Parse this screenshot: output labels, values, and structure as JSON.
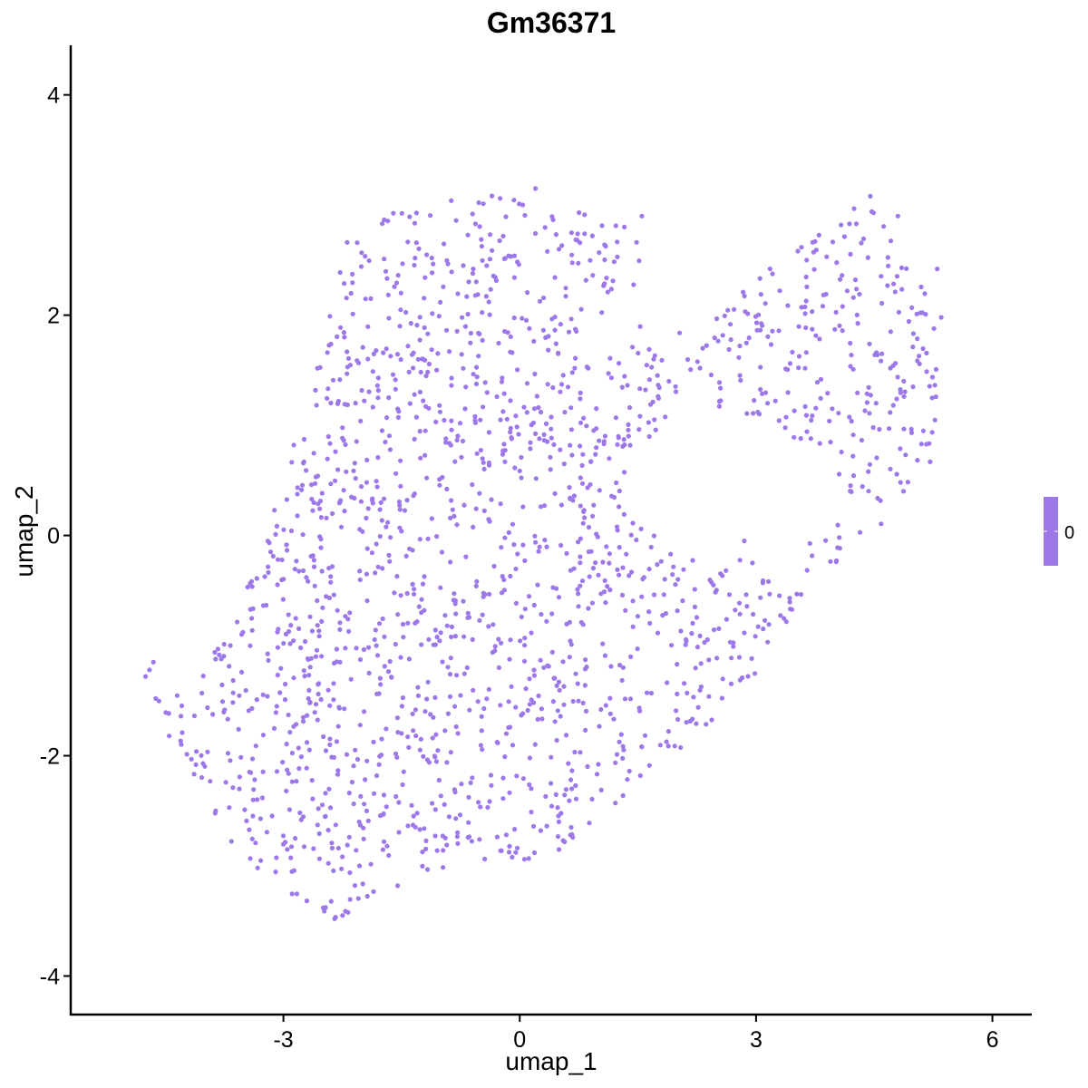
{
  "chart_data": {
    "type": "scatter",
    "title": "Gm36371",
    "xlabel": "umap_1",
    "ylabel": "umap_2",
    "xlim": [
      -5.7,
      6.5
    ],
    "ylim": [
      -4.35,
      4.45
    ],
    "xticks": [
      "-3",
      "0",
      "3",
      "6"
    ],
    "yticks": [
      "-4",
      "-2",
      "0",
      "2",
      "4"
    ],
    "grid": false,
    "point_color": "#9d78e8",
    "n_points": 1800,
    "legend": {
      "position": "right",
      "labels": [
        "0"
      ],
      "color": "#9d78e8"
    },
    "region_outline": [
      [
        -4.7,
        -1.3
      ],
      [
        -4.1,
        -1.4
      ],
      [
        -3.3,
        -0.2
      ],
      [
        -2.6,
        1.5
      ],
      [
        -2.2,
        2.7
      ],
      [
        -1.5,
        3.0
      ],
      [
        -0.5,
        3.1
      ],
      [
        0.5,
        3.0
      ],
      [
        1.5,
        2.85
      ],
      [
        1.6,
        1.8
      ],
      [
        2.3,
        1.95
      ],
      [
        3.3,
        2.5
      ],
      [
        4.4,
        3.05
      ],
      [
        5.35,
        2.0
      ],
      [
        5.25,
        0.6
      ],
      [
        4.5,
        0.0
      ],
      [
        3.6,
        -0.5
      ],
      [
        3.2,
        -1.1
      ],
      [
        2.3,
        -1.8
      ],
      [
        1.4,
        -2.3
      ],
      [
        0.9,
        -2.8
      ],
      [
        0.0,
        -3.0
      ],
      [
        -1.5,
        -3.1
      ],
      [
        -2.3,
        -3.5
      ],
      [
        -3.2,
        -3.2
      ],
      [
        -4.2,
        -2.3
      ]
    ],
    "region_hole": [
      [
        1.3,
        0.5
      ],
      [
        2.1,
        1.3
      ],
      [
        3.1,
        1.0
      ],
      [
        3.9,
        0.7
      ],
      [
        4.1,
        0.2
      ],
      [
        3.4,
        -0.25
      ],
      [
        2.6,
        -0.2
      ],
      [
        1.8,
        -0.1
      ]
    ],
    "outlier_points": [
      [
        -4.75,
        -1.28
      ],
      [
        -4.7,
        -1.22
      ],
      [
        -4.65,
        -1.15
      ],
      [
        -4.62,
        -1.48
      ],
      [
        -4.45,
        -1.82
      ],
      [
        -1.55,
        -3.18
      ],
      [
        -2.35,
        -3.48
      ],
      [
        -2.25,
        -3.45
      ],
      [
        0.2,
        3.15
      ],
      [
        4.45,
        3.08
      ],
      [
        4.8,
        2.9
      ],
      [
        1.55,
        2.9
      ],
      [
        5.35,
        1.98
      ],
      [
        5.3,
        2.42
      ],
      [
        1.7,
        1.6
      ],
      [
        2.85,
        -0.05
      ]
    ]
  }
}
